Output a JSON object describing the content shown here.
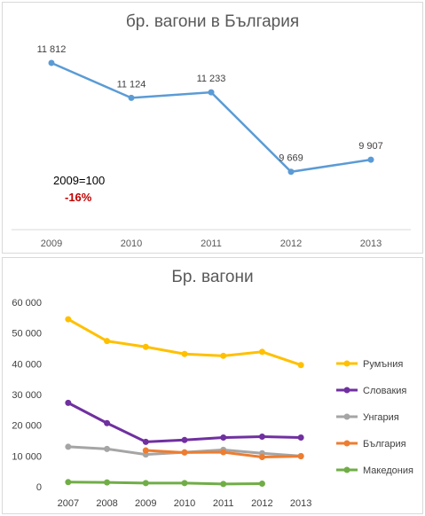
{
  "chart_data": [
    {
      "type": "line",
      "title": "бр. вагони в България",
      "categories": [
        "2009",
        "2010",
        "2011",
        "2012",
        "2013"
      ],
      "series": [
        {
          "values": [
            11812,
            11124,
            11233,
            9669,
            9907
          ]
        }
      ],
      "data_labels": [
        "11 812",
        "11 124",
        "11 233",
        "9 669",
        "9 907"
      ],
      "annotations": {
        "base": "2009=100",
        "change": "-16%"
      },
      "ylim": [
        8600,
        12300
      ],
      "grid": false,
      "colors": {
        "line": "#5b9bd5",
        "change": "#c00000"
      }
    },
    {
      "type": "line",
      "title": "Бр. вагони",
      "categories": [
        "2007",
        "2008",
        "2009",
        "2010",
        "2011",
        "2012",
        "2013"
      ],
      "ylim": [
        0,
        60000
      ],
      "yticks": [
        0,
        10000,
        20000,
        30000,
        40000,
        50000,
        60000
      ],
      "ytick_labels": [
        "0",
        "10 000",
        "20 000",
        "30 000",
        "40 000",
        "50 000",
        "60 000"
      ],
      "legend_position": "right",
      "grid": false,
      "series": [
        {
          "name": "Румъния",
          "color": "#ffc000",
          "values": [
            54500,
            47400,
            45500,
            43200,
            42600,
            43900,
            39600
          ]
        },
        {
          "name": "Словакия",
          "color": "#7030a0",
          "values": [
            27300,
            20700,
            14600,
            15200,
            16000,
            16300,
            16000
          ]
        },
        {
          "name": "Унгария",
          "color": "#a5a5a5",
          "values": [
            13000,
            12300,
            10500,
            11200,
            12000,
            10900,
            10000
          ]
        },
        {
          "name": "България",
          "color": "#ed7d31",
          "values": [
            null,
            null,
            11812,
            11124,
            11233,
            9669,
            9907
          ]
        },
        {
          "name": "Македония",
          "color": "#70ad47",
          "values": [
            1500,
            1400,
            1200,
            1200,
            900,
            1000,
            null
          ]
        }
      ]
    }
  ]
}
